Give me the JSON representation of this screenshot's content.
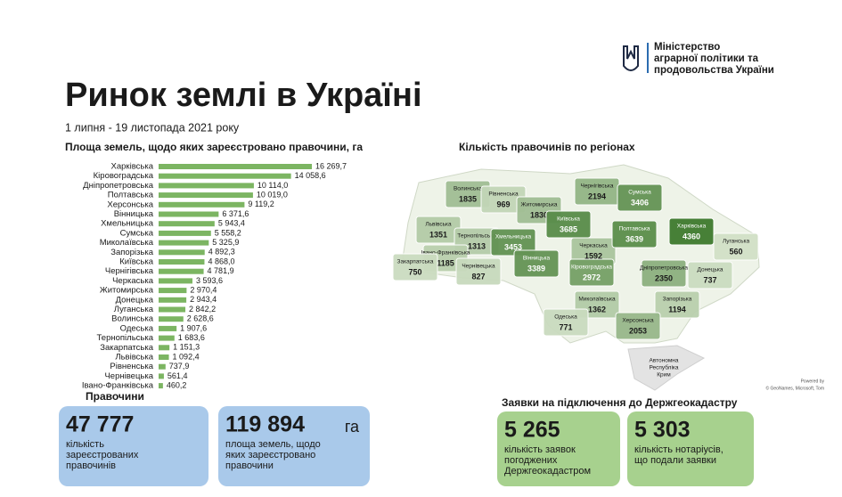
{
  "header": {
    "ministry": [
      "Міністерство",
      "аграрної політики та",
      "продовольства України"
    ],
    "title": "Ринок землі в Україні",
    "subtitle": "1 липня - 19 листопада 2021 року"
  },
  "chart_data": {
    "type": "bar",
    "orientation": "horizontal",
    "title": "Площа земель, щодо яких зареєстровано правочини, га",
    "color": "#7cb562",
    "categories": [
      "Харківська",
      "Кіровоградська",
      "Дніпропетровська",
      "Полтавська",
      "Херсонська",
      "Вінницька",
      "Хмельницька",
      "Сумська",
      "Миколаївська",
      "Запорізька",
      "Київська",
      "Чернігівська",
      "Черкаська",
      "Житомирська",
      "Донецька",
      "Луганська",
      "Волинська",
      "Одеська",
      "Тернопільська",
      "Закарпатська",
      "Львівська",
      "Рівненська",
      "Чернівецька",
      "Івано-Франківська"
    ],
    "values": [
      16269.7,
      14058.6,
      10114.0,
      10019.0,
      9119.2,
      6371.6,
      5943.4,
      5558.2,
      5325.9,
      4892.3,
      4868.0,
      4781.9,
      3593.6,
      2970.4,
      2943.4,
      2842.2,
      2628.6,
      1907.6,
      1683.6,
      1151.3,
      1092.4,
      737.9,
      561.4,
      460.2
    ],
    "value_labels": [
      "16 269,7",
      "14 058,6",
      "10 114,0",
      "10 019,0",
      "9 119,2",
      "6 371,6",
      "5 943,4",
      "5 558,2",
      "5 325,9",
      "4 892,3",
      "4 868,0",
      "4 781,9",
      "3 593,6",
      "2 970,4",
      "2 943,4",
      "2 842,2",
      "2 628,6",
      "1 907,6",
      "1 683,6",
      "1 151,3",
      "1 092,4",
      "737,9",
      "561,4",
      "460,2"
    ]
  },
  "map": {
    "title": "Кількість правочинів по регіонах",
    "regions": [
      {
        "name": "Волинська",
        "value": 1835
      },
      {
        "name": "Рівненська",
        "value": 969
      },
      {
        "name": "Житомирська",
        "value": 1830
      },
      {
        "name": "Чернігівська",
        "value": 2194
      },
      {
        "name": "Сумська",
        "value": 3406
      },
      {
        "name": "Київська",
        "value": 3685
      },
      {
        "name": "Харківська",
        "value": 4360
      },
      {
        "name": "Луганська",
        "value": 560
      },
      {
        "name": "Львівська",
        "value": 1351
      },
      {
        "name": "Тернопільська",
        "value": 1313
      },
      {
        "name": "Хмельницька",
        "value": 3453
      },
      {
        "name": "Вінницька",
        "value": 3389
      },
      {
        "name": "Черкаська",
        "value": 1592
      },
      {
        "name": "Полтавська",
        "value": 3639
      },
      {
        "name": "Донецька",
        "value": 737
      },
      {
        "name": "Івано-Франківська",
        "value": 1185
      },
      {
        "name": "Закарпатська",
        "value": 750
      },
      {
        "name": "Чернівецька",
        "value": 827
      },
      {
        "name": "Кіровоградська",
        "value": 2972
      },
      {
        "name": "Дніпропетровська",
        "value": 2350
      },
      {
        "name": "Миколаївська",
        "value": 1362
      },
      {
        "name": "Запорізька",
        "value": 1194
      },
      {
        "name": "Одеська",
        "value": 771
      },
      {
        "name": "Херсонська",
        "value": 2053
      }
    ],
    "crimea": [
      "Автономна",
      "Республіка",
      "Крим"
    ],
    "credits": [
      "Powered by",
      "© GeoNames, Microsoft, Tom"
    ]
  },
  "deals": {
    "title": "Правочини",
    "cards": [
      {
        "number": "47 777",
        "text": [
          "кількість",
          "зареєстрованих",
          "правочинів"
        ]
      },
      {
        "number": "119 894",
        "unit": "га",
        "text": [
          "площа земель, щодо",
          "яких зареєстровано",
          "правочини"
        ]
      }
    ]
  },
  "applications": {
    "title": "Заявки на підключення до Держгеокадастру",
    "cards": [
      {
        "number": "5 265",
        "text": [
          "кількість заявок",
          "погоджених",
          "Держгеокадастром"
        ]
      },
      {
        "number": "5 303",
        "text": [
          "кількість нотаріусів,",
          "що подали заявки"
        ]
      }
    ]
  }
}
